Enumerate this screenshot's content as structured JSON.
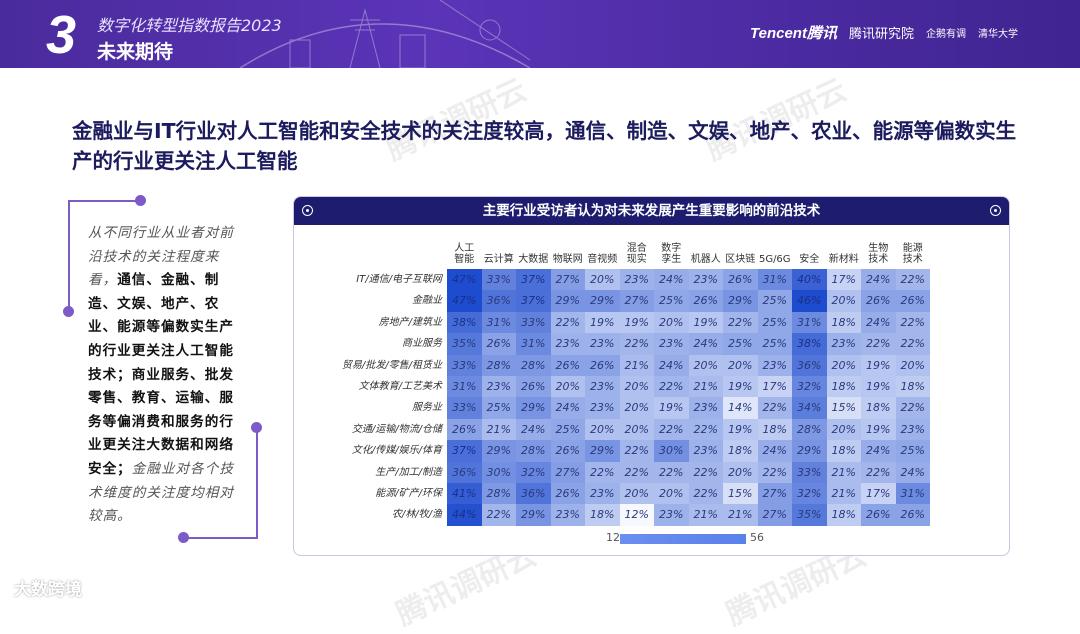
{
  "header": {
    "section_number": "3",
    "report_title": "数字化转型指数报告2023",
    "section_title": "未来期待",
    "logos": [
      "Tencent腾讯",
      "腾讯研究院",
      "企鹅有调",
      "清华大学"
    ]
  },
  "headline": "金融业与IT行业对人工智能和安全技术的关注度较高，通信、制造、文娱、地产、农业、能源等偏数实生产的行业更关注人工智能",
  "note": [
    {
      "text": "从不同行业从业者对前沿技术的关注程度来看，",
      "bold": false
    },
    {
      "text": "通信、金融、制造、文娱、地产、农业、能源等偏数实生产的行业更关注人工智能技术；商业服务、批发零售、教育、运输、服务等偏消费和服务的行业更关注大数据和网络安全；",
      "bold": true
    },
    {
      "text": "金融业对各个技术维度的关注度均相对较高。",
      "bold": false
    }
  ],
  "watermark": "腾讯调研云",
  "footer_brand": "大数跨境",
  "chart_data": {
    "type": "heatmap",
    "title": "主要行业受访者认为对未来发展产生重要影响的前沿技术",
    "columns": [
      "人工智能",
      "云计算",
      "大数据",
      "物联网",
      "音视频",
      "混合现实",
      "数字孪生",
      "机器人",
      "区块链",
      "5G/6G",
      "安全",
      "新材料",
      "生物技术",
      "能源技术"
    ],
    "rows": [
      "IT/通信/电子互联网",
      "金融业",
      "房地产/建筑业",
      "商业服务",
      "贸易/批发/零售/租赁业",
      "文体教育/工艺美术",
      "服务业",
      "交通/运输/物流/仓储",
      "文化/传媒/娱乐/体育",
      "生产/加工/制造",
      "能源/矿产/环保",
      "农/林/牧/渔"
    ],
    "values": [
      [
        47,
        33,
        37,
        27,
        20,
        23,
        24,
        23,
        26,
        31,
        40,
        17,
        24,
        22
      ],
      [
        47,
        36,
        37,
        29,
        29,
        27,
        25,
        26,
        29,
        25,
        46,
        20,
        26,
        26
      ],
      [
        38,
        31,
        33,
        22,
        19,
        19,
        20,
        19,
        22,
        25,
        31,
        18,
        24,
        22
      ],
      [
        35,
        26,
        31,
        23,
        23,
        22,
        23,
        24,
        25,
        25,
        38,
        23,
        22,
        22
      ],
      [
        33,
        28,
        28,
        26,
        26,
        21,
        24,
        20,
        20,
        23,
        36,
        20,
        19,
        20
      ],
      [
        31,
        23,
        26,
        20,
        23,
        20,
        22,
        21,
        19,
        17,
        32,
        18,
        19,
        18
      ],
      [
        33,
        25,
        29,
        24,
        23,
        20,
        19,
        23,
        14,
        22,
        34,
        15,
        18,
        22
      ],
      [
        26,
        21,
        24,
        25,
        20,
        20,
        22,
        22,
        19,
        18,
        28,
        20,
        19,
        23
      ],
      [
        37,
        29,
        28,
        26,
        29,
        22,
        30,
        23,
        18,
        24,
        29,
        18,
        24,
        25
      ],
      [
        36,
        30,
        32,
        27,
        22,
        22,
        22,
        22,
        20,
        22,
        33,
        21,
        22,
        24
      ],
      [
        41,
        28,
        36,
        26,
        23,
        20,
        20,
        22,
        15,
        27,
        32,
        21,
        17,
        31
      ],
      [
        44,
        22,
        29,
        23,
        18,
        12,
        23,
        21,
        21,
        27,
        35,
        18,
        26,
        26
      ]
    ],
    "unit": "%",
    "scale_min": 12,
    "scale_max": 56,
    "colors": {
      "low": "#f6f8fe",
      "high": "#1e4ccf"
    }
  }
}
